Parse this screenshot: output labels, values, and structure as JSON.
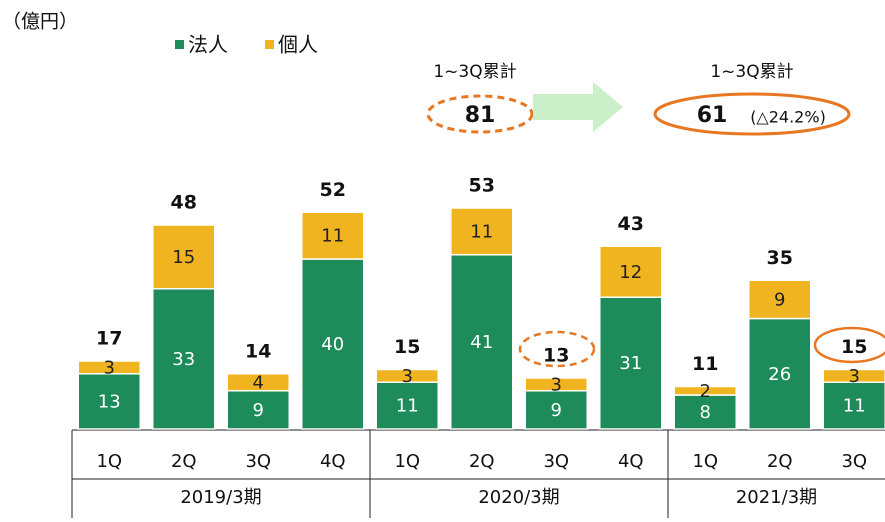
{
  "chart_data": {
    "type": "stacked_bar",
    "unit_label": "（億円）",
    "categories": [
      "1Q",
      "2Q",
      "3Q",
      "4Q",
      "1Q",
      "2Q",
      "3Q",
      "4Q",
      "1Q",
      "2Q",
      "3Q"
    ],
    "groups": [
      "2019/3期",
      "2020/3期",
      "2021/3期"
    ],
    "series": [
      {
        "name": "法人",
        "color": "#1e8c5a",
        "values": [
          13,
          33,
          9,
          40,
          11,
          41,
          9,
          31,
          8,
          26,
          11
        ]
      },
      {
        "name": "個人",
        "color": "#f0b420",
        "values": [
          3,
          15,
          4,
          11,
          3,
          11,
          3,
          12,
          2,
          9,
          3
        ]
      }
    ],
    "totals": [
      17,
      48,
      14,
      52,
      15,
      53,
      13,
      43,
      11,
      35,
      15
    ],
    "annotations": {
      "left_title": "1~3Q累計",
      "left_value": "81",
      "right_title": "1~3Q累計",
      "right_value": "61",
      "right_change": "(△24.2%)"
    }
  }
}
